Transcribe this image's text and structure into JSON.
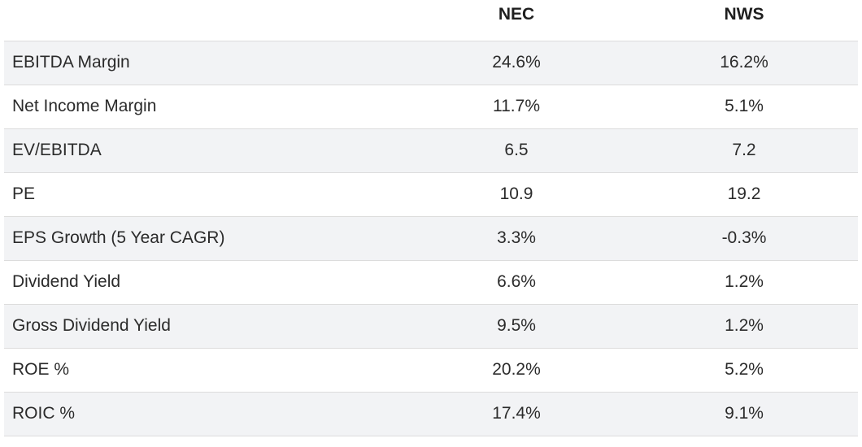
{
  "table": {
    "headers": [
      "",
      "NEC",
      "NWS"
    ],
    "rows": [
      {
        "metric": "EBITDA Margin",
        "a": "24.6%",
        "b": "16.2%"
      },
      {
        "metric": "Net Income Margin",
        "a": "11.7%",
        "b": "5.1%"
      },
      {
        "metric": "EV/EBITDA",
        "a": "6.5",
        "b": "7.2"
      },
      {
        "metric": "PE",
        "a": "10.9",
        "b": "19.2"
      },
      {
        "metric": "EPS Growth (5 Year CAGR)",
        "a": "3.3%",
        "b": "-0.3%"
      },
      {
        "metric": "Dividend Yield",
        "a": "6.6%",
        "b": "1.2%"
      },
      {
        "metric": "Gross Dividend Yield",
        "a": "9.5%",
        "b": "1.2%"
      },
      {
        "metric": "ROE %",
        "a": "20.2%",
        "b": "5.2%"
      },
      {
        "metric": "ROIC %",
        "a": "17.4%",
        "b": "9.1%"
      }
    ]
  },
  "colors": {
    "row_shade": "#f2f3f5",
    "row_plain": "#ffffff",
    "divider": "#dcdcdc",
    "text": "#2b2b2b"
  }
}
